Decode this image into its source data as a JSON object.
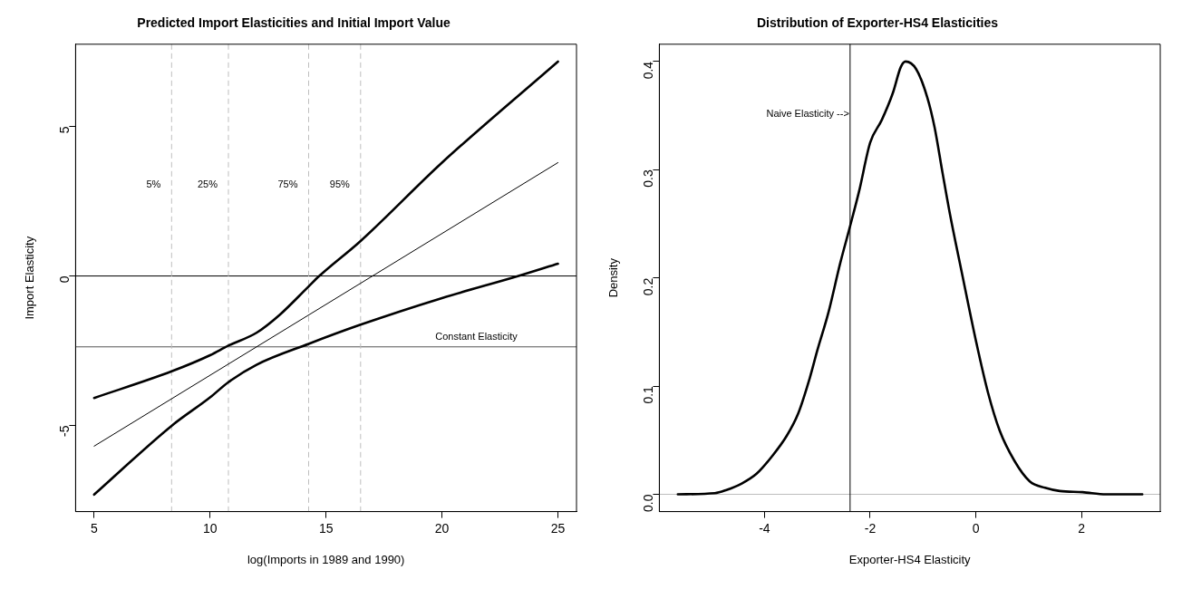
{
  "chart_data": [
    {
      "type": "line",
      "title": "Predicted Import Elasticities and Initial Import Value",
      "xlabel": "log(Imports in 1989 and 1990)",
      "ylabel": "Import Elasticity",
      "xlim": [
        4.2,
        25.8
      ],
      "ylim": [
        -7.88,
        7.75
      ],
      "xticks": [
        5,
        10,
        15,
        20,
        25
      ],
      "yticks": [
        -5,
        0,
        5
      ],
      "grid": false,
      "legend": false,
      "marker": "none",
      "line_style": "solid",
      "series": [
        {
          "color": "#000000",
          "x": [
            5,
            8.34,
            10,
            10.79,
            12,
            13,
            14.25,
            14.71,
            16.49,
            20,
            25
          ],
          "values": [
            -4.08,
            -3.19,
            -2.65,
            -2.33,
            -1.9,
            -1.3,
            -0.35,
            0,
            1.17,
            3.79,
            7.17
          ]
        },
        {
          "color": "#000000",
          "x": [
            5,
            25
          ],
          "values": [
            -5.69,
            3.79
          ]
        },
        {
          "color": "#000000",
          "x": [
            5,
            8.34,
            10,
            10.79,
            12,
            14.25,
            16.49,
            20,
            23.3,
            25
          ],
          "values": [
            -7.31,
            -5.01,
            -4.06,
            -3.55,
            -2.97,
            -2.27,
            -1.63,
            -0.74,
            0,
            0.41
          ]
        }
      ],
      "ref_lines": [
        {
          "axis": "y",
          "value": 0,
          "color": "#000000",
          "line_style": "solid"
        },
        {
          "axis": "y",
          "value": -2.37,
          "color": "#555555",
          "line_style": "solid",
          "label": "Constant Elasticity"
        },
        {
          "axis": "x",
          "value": 8.34,
          "color": "#bebebe",
          "line_style": "dashed"
        },
        {
          "axis": "x",
          "value": 10.79,
          "color": "#bebebe",
          "line_style": "dashed"
        },
        {
          "axis": "x",
          "value": 14.25,
          "color": "#bebebe",
          "line_style": "dashed"
        },
        {
          "axis": "x",
          "value": 16.49,
          "color": "#bebebe",
          "line_style": "dashed"
        }
      ],
      "annotations": [
        "5%",
        "25%",
        "75%",
        "95%"
      ]
    },
    {
      "type": "line",
      "title": "Distribution of Exporter-HS4 Elasticities",
      "xlabel": "Exporter-HS4 Elasticity",
      "ylabel": "Density",
      "xlim": [
        -5.99,
        3.49
      ],
      "ylim": [
        -0.016,
        0.416
      ],
      "xticks": [
        -4,
        -2,
        0,
        2
      ],
      "yticks": [
        {
          "value": 0,
          "label": "0.0"
        },
        0.1,
        0.2,
        0.3,
        0.4
      ],
      "grid": false,
      "legend": false,
      "marker": "none",
      "line_style": "solid",
      "series": [
        {
          "color": "#000000",
          "x": [
            -5.64,
            -4.94,
            -4.72,
            -4.43,
            -4.15,
            -3.86,
            -3.58,
            -3.36,
            -3.14,
            -3.0,
            -2.79,
            -2.57,
            -2.39,
            -2.21,
            -2.0,
            -1.78,
            -1.57,
            -1.42,
            -1.33,
            -1.13,
            -0.92,
            -0.78,
            -0.63,
            -0.49,
            -0.27,
            0.01,
            0.23,
            0.45,
            0.73,
            1.02,
            1.31,
            1.59,
            2.02,
            2.46,
            3.15
          ],
          "values": [
            0,
            0.001,
            0.004,
            0.01,
            0.019,
            0.035,
            0.054,
            0.075,
            0.108,
            0.133,
            0.168,
            0.213,
            0.246,
            0.28,
            0.325,
            0.346,
            0.371,
            0.395,
            0.4,
            0.393,
            0.367,
            0.339,
            0.297,
            0.259,
            0.206,
            0.14,
            0.094,
            0.059,
            0.031,
            0.012,
            0.006,
            0.003,
            0.002,
            0,
            0
          ]
        }
      ],
      "ref_lines": [
        {
          "axis": "y",
          "value": 0,
          "color": "#bebebe",
          "line_style": "solid"
        },
        {
          "axis": "x",
          "value": -2.38,
          "color": "#000000",
          "line_style": "solid",
          "label": "Naive Elasticity -->"
        }
      ]
    }
  ]
}
